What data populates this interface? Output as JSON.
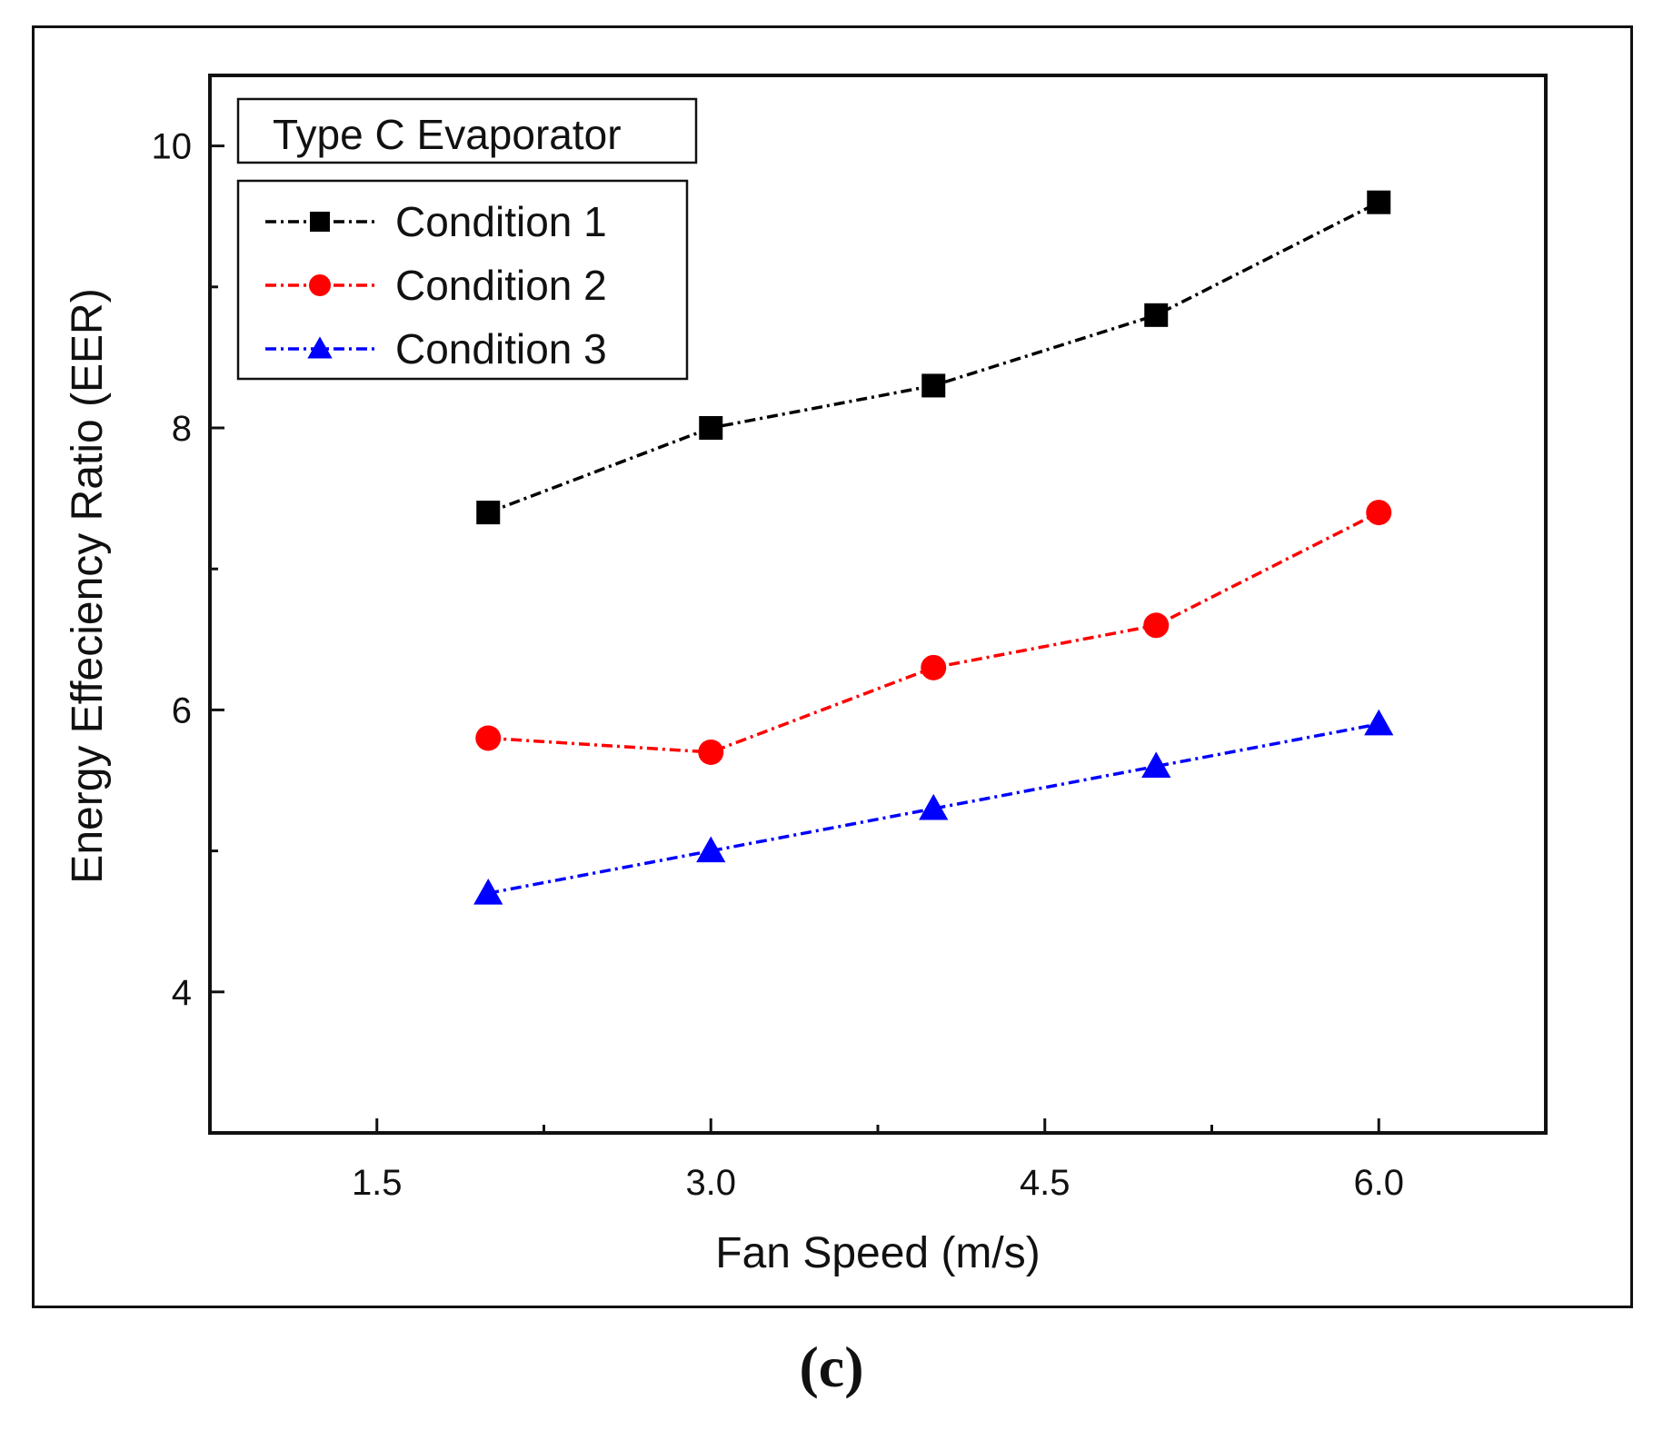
{
  "chart_data": {
    "type": "line",
    "title": "Type C Evaporator",
    "xlabel": "Fan Speed (m/s)",
    "ylabel": "Energy Effeciency Ratio (EER)",
    "xlim": [
      0.75,
      6.75
    ],
    "ylim": [
      3.0,
      10.5
    ],
    "xticks": [
      1.5,
      3.0,
      4.5,
      6.0
    ],
    "xtick_labels": [
      "1.5",
      "3.0",
      "4.5",
      "6.0"
    ],
    "xminor_ticks": [
      2.25,
      3.75,
      5.25,
      6.75
    ],
    "yticks": [
      4,
      6,
      8,
      10
    ],
    "ytick_labels": [
      "4",
      "6",
      "8",
      "10"
    ],
    "yminor_ticks": [
      5,
      7,
      9
    ],
    "grid": false,
    "legend_position": "top-left",
    "x": [
      2.0,
      3.0,
      4.0,
      5.0,
      6.0
    ],
    "series": [
      {
        "name": "Condition 1",
        "marker": "square",
        "color": "#000000",
        "values": [
          7.4,
          8.0,
          8.3,
          8.8,
          9.6
        ]
      },
      {
        "name": "Condition 2",
        "marker": "circle",
        "color": "#ff0000",
        "values": [
          5.8,
          5.7,
          6.3,
          6.6,
          7.4
        ]
      },
      {
        "name": "Condition 3",
        "marker": "triangle",
        "color": "#0000ff",
        "values": [
          4.7,
          5.0,
          5.3,
          5.6,
          5.9
        ]
      }
    ]
  },
  "panel_label": "(c)"
}
